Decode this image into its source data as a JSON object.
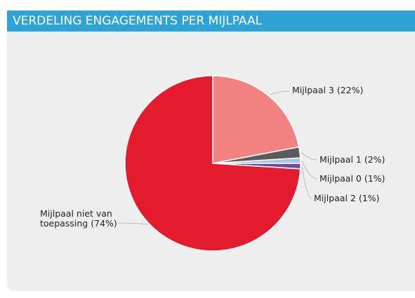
{
  "chart_data": {
    "type": "pie",
    "title": "VERDELING ENGAGEMENTS PER MIJLPAAL",
    "categories": [
      "Mijlpaal 3",
      "Mijlpaal 1",
      "Mijlpaal 0",
      "Mijlpaal 2",
      "Mijlpaal niet van toepassing"
    ],
    "values": [
      22,
      2,
      1,
      1,
      74
    ],
    "value_labels": [
      "(22%)",
      "(2%)",
      "(1%)",
      "(1%)",
      "(74%)"
    ],
    "colors": [
      "#f28282",
      "#5b5b5b",
      "#a9c4e3",
      "#6a4c9c",
      "#e31b2d"
    ]
  }
}
